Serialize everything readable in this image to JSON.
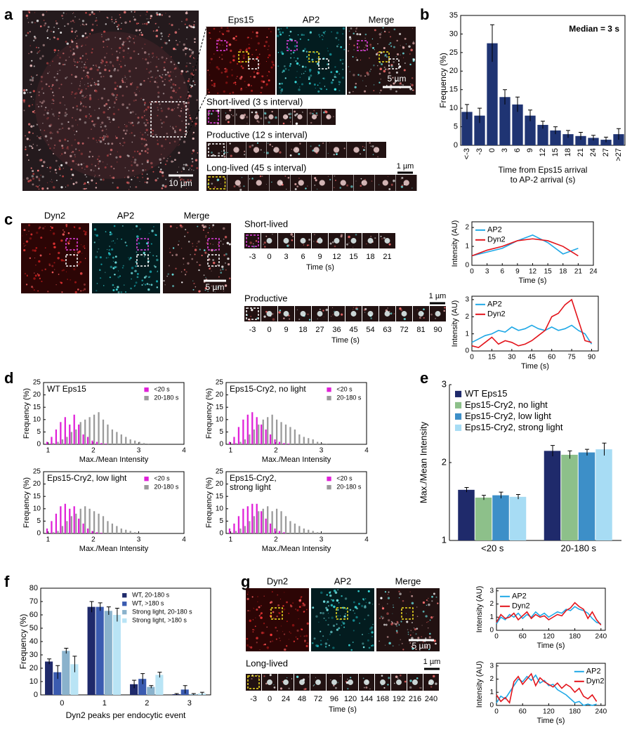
{
  "panel_labels": [
    "a",
    "b",
    "c",
    "d",
    "e",
    "f",
    "g"
  ],
  "micrographs": {
    "a": {
      "scale_bar": "10 µm",
      "channels": [
        "Eps15",
        "AP2",
        "Merge"
      ],
      "inset_scale_bar": "5 µm",
      "strips": [
        {
          "label": "Short-lived (3 s interval)"
        },
        {
          "label": "Productive (12 s interval)"
        },
        {
          "label": "Long-lived (45 s interval)"
        }
      ],
      "strip_scale_bar": "1 µm"
    },
    "c": {
      "channels": [
        "Dyn2",
        "AP2",
        "Merge"
      ],
      "scale_bar": "5 µm",
      "strips": [
        {
          "label": "Short-lived",
          "times": [
            -3,
            0,
            3,
            6,
            9,
            12,
            15,
            18,
            21
          ],
          "axis_label": "Time (s)"
        },
        {
          "label": "Productive",
          "times": [
            -3,
            0,
            9,
            18,
            27,
            36,
            45,
            54,
            63,
            72,
            81,
            90
          ],
          "axis_label": "Time (s)"
        }
      ],
      "strip_scale_bar": "1 µm"
    },
    "g": {
      "channels": [
        "Dyn2",
        "AP2",
        "Merge"
      ],
      "scale_bar": "5 µm",
      "strips": [
        {
          "label": "Long-lived",
          "times": [
            -3,
            0,
            24,
            48,
            72,
            96,
            120,
            144,
            168,
            192,
            216,
            240
          ],
          "axis_label": "Time (s)"
        }
      ],
      "strip_scale_bar": "1 µm"
    }
  },
  "chart_data": [
    {
      "type": "bar",
      "categories": [
        "<-3",
        "-3",
        "0",
        "3",
        "6",
        "9",
        "12",
        "15",
        "18",
        "21",
        "24",
        "27",
        ">27"
      ],
      "values": [
        9,
        8,
        27.5,
        13,
        11,
        8,
        5.5,
        4,
        3,
        2.5,
        2,
        1.5,
        3
      ],
      "errors": [
        2,
        2,
        5,
        2,
        2,
        1.5,
        1,
        1,
        1,
        1,
        0.7,
        0.7,
        1.5
      ],
      "color": "#1f3473",
      "ylim": [
        0,
        35
      ],
      "yticks": [
        0,
        5,
        10,
        15,
        20,
        25,
        30,
        35
      ],
      "ylabel": "Frequency (%)",
      "xlabel": [
        "Time from Eps15 arrival",
        "to AP-2 arrival (s)"
      ],
      "annotation": "Median = 3 s"
    },
    {
      "type": "line",
      "x": [
        0,
        3,
        6,
        9,
        12,
        15,
        18,
        21
      ],
      "series": [
        {
          "name": "AP2",
          "color": "#1fa8e6",
          "values": [
            0.5,
            0.7,
            0.9,
            1.3,
            1.6,
            1.2,
            0.6,
            0.9
          ]
        },
        {
          "name": "Dyn2",
          "color": "#e3141b",
          "values": [
            0.5,
            0.8,
            1.0,
            1.3,
            1.4,
            1.3,
            1.0,
            0.5
          ]
        }
      ],
      "xlim": [
        0,
        24
      ],
      "xticks": [
        0,
        3,
        6,
        9,
        12,
        15,
        18,
        21,
        24
      ],
      "ylim": [
        0,
        2.3
      ],
      "yticks": [
        0,
        1,
        2
      ],
      "xlabel": "Time (s)",
      "ylabel": "Intensity (AU)",
      "legend": "upper left"
    },
    {
      "type": "line",
      "x": [
        0,
        5,
        10,
        15,
        20,
        25,
        30,
        35,
        40,
        45,
        50,
        55,
        60,
        65,
        70,
        75,
        80,
        85,
        90
      ],
      "series": [
        {
          "name": "AP2",
          "color": "#1fa8e6",
          "values": [
            0.5,
            0.7,
            0.9,
            1.0,
            1.2,
            1.1,
            1.4,
            1.2,
            1.3,
            1.5,
            1.3,
            1.2,
            1.4,
            1.2,
            1.3,
            1.5,
            1.2,
            1.0,
            0.4
          ]
        },
        {
          "name": "Dyn2",
          "color": "#e3141b",
          "values": [
            0.3,
            0.2,
            0.5,
            0.8,
            0.4,
            0.6,
            0.5,
            0.3,
            0.4,
            0.6,
            0.9,
            1.2,
            2.0,
            2.2,
            2.7,
            3.0,
            1.8,
            0.6,
            0.5
          ]
        }
      ],
      "xlim": [
        0,
        95
      ],
      "xticks": [
        0,
        15,
        30,
        45,
        60,
        75,
        90
      ],
      "ylim": [
        0,
        3.2
      ],
      "yticks": [
        0,
        1,
        2,
        3
      ],
      "xlabel": "Time (s)",
      "ylabel": "Intensity (AU)",
      "legend": "upper left"
    },
    {
      "type": "bar",
      "title": "WT Eps15",
      "x": [
        1,
        1.1,
        1.2,
        1.3,
        1.4,
        1.5,
        1.6,
        1.7,
        1.8,
        1.9,
        2,
        2.1,
        2.2,
        2.3,
        2.4,
        2.5,
        2.6,
        2.7,
        2.8,
        2.9,
        3,
        3.1,
        3.2
      ],
      "series": [
        {
          "name": "<20 s",
          "color": "#e020d8",
          "values": [
            1,
            3,
            6,
            9,
            11,
            8,
            12,
            8,
            4,
            3,
            1.5,
            1,
            0.5,
            0.3,
            0,
            0,
            0,
            0,
            0,
            0,
            0,
            0,
            0
          ]
        },
        {
          "name": "20-180 s",
          "color": "#9a9a9a",
          "values": [
            0,
            0.5,
            1,
            2,
            3,
            5,
            6,
            9,
            10,
            11,
            12,
            13,
            10,
            8,
            6,
            5,
            4,
            3,
            2,
            1.5,
            1,
            0.5,
            0.3
          ]
        }
      ],
      "xlim": [
        0.9,
        4
      ],
      "xticks": [
        1,
        2,
        3,
        4
      ],
      "ylim": [
        0,
        25
      ],
      "yticks": [
        0,
        5,
        10,
        15,
        20,
        25
      ],
      "xlabel": "Max./Mean Intensity",
      "ylabel": "Frequency (%)",
      "legend": "upper right"
    },
    {
      "type": "bar",
      "title": "Eps15-Cry2, no light",
      "x": [
        1,
        1.1,
        1.2,
        1.3,
        1.4,
        1.5,
        1.6,
        1.7,
        1.8,
        1.9,
        2,
        2.1,
        2.2,
        2.3,
        2.4,
        2.5,
        2.6,
        2.7,
        2.8,
        2.9,
        3,
        3.1,
        3.2
      ],
      "series": [
        {
          "name": "<20 s",
          "color": "#e020d8",
          "values": [
            1,
            3,
            7,
            10,
            12,
            13,
            11,
            8,
            6,
            4,
            2,
            1,
            0.5,
            0.3,
            0,
            0,
            0,
            0,
            0,
            0,
            0,
            0,
            0
          ]
        },
        {
          "name": "20-180 s",
          "color": "#9a9a9a",
          "values": [
            0,
            0.5,
            1,
            2,
            4,
            6,
            8,
            10,
            11,
            12,
            10,
            9,
            8,
            7,
            6,
            4,
            3,
            2.5,
            2,
            1,
            0.5,
            0.3,
            0
          ]
        }
      ],
      "xlim": [
        0.9,
        4
      ],
      "xticks": [
        1,
        2,
        3,
        4
      ],
      "ylim": [
        0,
        25
      ],
      "yticks": [
        0,
        5,
        10,
        15,
        20,
        25
      ],
      "xlabel": "Max./Mean Intensity",
      "ylabel": "Frequency (%)",
      "legend": "upper right"
    },
    {
      "type": "bar",
      "title": "Eps15-Cry2, low light",
      "x": [
        1,
        1.1,
        1.2,
        1.3,
        1.4,
        1.5,
        1.6,
        1.7,
        1.8,
        1.9,
        2,
        2.1,
        2.2,
        2.3,
        2.4,
        2.5,
        2.6,
        2.7,
        2.8,
        2.9,
        3,
        3.1,
        3.2
      ],
      "series": [
        {
          "name": "<20 s",
          "color": "#e020d8",
          "values": [
            2,
            5,
            8,
            11,
            12,
            10,
            11,
            6,
            4,
            2,
            1,
            0.5,
            0.3,
            0,
            0,
            0,
            0,
            0,
            0,
            0,
            0,
            0,
            0
          ]
        },
        {
          "name": "20-180 s",
          "color": "#9a9a9a",
          "values": [
            0,
            0.5,
            1,
            3,
            5,
            7,
            8,
            10,
            11,
            10,
            9,
            8,
            7,
            5,
            4,
            3,
            2,
            1.5,
            1,
            0.5,
            0.3,
            0,
            0
          ]
        }
      ],
      "xlim": [
        0.9,
        4
      ],
      "xticks": [
        1,
        2,
        3,
        4
      ],
      "ylim": [
        0,
        25
      ],
      "yticks": [
        0,
        5,
        10,
        15,
        20,
        25
      ],
      "xlabel": "Max./Mean Intensity",
      "ylabel": "Frequency (%)",
      "legend": "upper right"
    },
    {
      "type": "bar",
      "title": [
        "Eps15-Cry2,",
        "strong light"
      ],
      "x": [
        1,
        1.1,
        1.2,
        1.3,
        1.4,
        1.5,
        1.6,
        1.7,
        1.8,
        1.9,
        2,
        2.1,
        2.2,
        2.3,
        2.4,
        2.5,
        2.6,
        2.7,
        2.8,
        2.9,
        3,
        3.1,
        3.2
      ],
      "series": [
        {
          "name": "<20 s",
          "color": "#e020d8",
          "values": [
            2,
            4,
            7,
            10,
            11,
            12,
            12,
            9,
            6,
            4,
            2,
            1,
            0.5,
            0,
            0,
            0,
            0,
            0,
            0,
            0,
            0,
            0,
            0
          ]
        },
        {
          "name": "20-180 s",
          "color": "#9a9a9a",
          "values": [
            0,
            1,
            2,
            3,
            5,
            7,
            9,
            10,
            11,
            9,
            10,
            9,
            7,
            5,
            4,
            3,
            2,
            1.5,
            1,
            0.5,
            0.3,
            0,
            0
          ]
        }
      ],
      "xlim": [
        0.9,
        4
      ],
      "xticks": [
        1,
        2,
        3,
        4
      ],
      "ylim": [
        0,
        25
      ],
      "yticks": [
        0,
        5,
        10,
        15,
        20,
        25
      ],
      "xlabel": "Max./Mean Intensity",
      "ylabel": "Frequency (%)",
      "legend": "upper right"
    },
    {
      "type": "bar",
      "categories": [
        "<20 s",
        "20-180 s"
      ],
      "series": [
        {
          "name": "WT Eps15",
          "color": "#1f2a6b",
          "values": [
            1.65,
            2.15
          ],
          "errors": [
            0.03,
            0.07
          ]
        },
        {
          "name": "Eps15-Cry2, no light",
          "color": "#8dc08a",
          "values": [
            1.55,
            2.1
          ],
          "errors": [
            0.03,
            0.05
          ]
        },
        {
          "name": "Eps15-Cry2, low light",
          "color": "#3d8fc8",
          "values": [
            1.58,
            2.13
          ],
          "errors": [
            0.04,
            0.04
          ]
        },
        {
          "name": "Eps15-Cry2, strong light",
          "color": "#a7dcf4",
          "values": [
            1.56,
            2.17
          ],
          "errors": [
            0.03,
            0.08
          ]
        }
      ],
      "ylim": [
        1,
        3
      ],
      "yticks": [
        1,
        2,
        3
      ],
      "ylabel": "Max./Mean Intensity",
      "legend": "upper left"
    },
    {
      "type": "bar",
      "categories": [
        "0",
        "1",
        "2",
        "3"
      ],
      "series": [
        {
          "name": "WT, 20-180 s",
          "color": "#1f2a6b",
          "values": [
            25,
            66,
            8,
            0.5
          ],
          "errors": [
            2,
            4,
            3,
            0.5
          ]
        },
        {
          "name": "WT, >180 s",
          "color": "#3a5bb0",
          "values": [
            17,
            66,
            12,
            4
          ],
          "errors": [
            5,
            3,
            4,
            3
          ]
        },
        {
          "name": "Strong light, 20-180 s",
          "color": "#8ab2cc",
          "values": [
            33,
            63,
            6,
            0.5
          ],
          "errors": [
            2,
            3,
            1,
            0.5
          ]
        },
        {
          "name": "Strong light, >180 s",
          "color": "#b9e4f5",
          "values": [
            23,
            60,
            15,
            1
          ],
          "errors": [
            6,
            5,
            2,
            1
          ]
        }
      ],
      "ylim": [
        0,
        80
      ],
      "yticks": [
        0,
        10,
        20,
        30,
        40,
        50,
        60,
        70,
        80
      ],
      "ylabel": "Frequency (%)",
      "xlabel": "Dyn2 peaks per endocytic event",
      "legend": "upper right"
    },
    {
      "type": "line",
      "x": [
        0,
        10,
        20,
        30,
        40,
        50,
        60,
        70,
        80,
        90,
        100,
        110,
        120,
        130,
        140,
        150,
        160,
        170,
        180,
        190,
        200,
        210,
        220,
        230,
        240
      ],
      "series": [
        {
          "name": "AP2",
          "color": "#1fa8e6",
          "values": [
            0.5,
            1.0,
            0.8,
            1.2,
            1.0,
            1.3,
            0.9,
            1.2,
            1.0,
            1.4,
            1.1,
            1.3,
            1.0,
            1.2,
            1.4,
            1.3,
            1.6,
            1.5,
            1.8,
            1.6,
            1.5,
            1.3,
            0.9,
            0.6,
            0.5
          ]
        },
        {
          "name": "Dyn2",
          "color": "#e3141b",
          "values": [
            0.6,
            1.2,
            0.9,
            1.0,
            1.3,
            0.8,
            1.1,
            1.4,
            0.9,
            1.2,
            1.0,
            1.1,
            0.8,
            1.0,
            1.2,
            1.1,
            1.5,
            1.7,
            2.1,
            1.8,
            1.6,
            0.9,
            1.4,
            0.8,
            0.4
          ]
        }
      ],
      "xlim": [
        0,
        250
      ],
      "xticks": [
        0,
        60,
        120,
        180,
        240
      ],
      "ylim": [
        0,
        3.2
      ],
      "yticks": [
        0,
        1,
        2,
        3
      ],
      "xlabel": "Time (s)",
      "ylabel": "Intensity (AU)",
      "legend": "upper left"
    },
    {
      "type": "line",
      "x": [
        0,
        10,
        20,
        30,
        40,
        50,
        60,
        70,
        80,
        90,
        100,
        110,
        120,
        130,
        140,
        150,
        160,
        170,
        180,
        190,
        200,
        210,
        220,
        230
      ],
      "series": [
        {
          "name": "AP2",
          "color": "#1fa8e6",
          "values": [
            0.2,
            0.7,
            0.5,
            1.0,
            1.5,
            2.0,
            1.8,
            2.2,
            1.9,
            2.3,
            1.7,
            1.9,
            1.5,
            1.6,
            1.2,
            1.0,
            0.8,
            0.5,
            0.2,
            0.3,
            0.0,
            0.1,
            0.0,
            0.1
          ]
        },
        {
          "name": "Dyn2",
          "color": "#e3141b",
          "values": [
            0.8,
            0.3,
            0.6,
            0.2,
            1.8,
            2.2,
            1.6,
            2.0,
            2.4,
            1.5,
            2.1,
            1.8,
            1.6,
            1.4,
            1.7,
            1.3,
            1.6,
            1.4,
            1.0,
            1.3,
            0.7,
            0.5,
            0.8,
            0.3
          ]
        }
      ],
      "xlim": [
        0,
        250
      ],
      "xticks": [
        0,
        60,
        120,
        180,
        240
      ],
      "ylim": [
        0,
        3.2
      ],
      "yticks": [
        0,
        1,
        2,
        3
      ],
      "xlabel": "Time (s)",
      "ylabel": "Intensity (AU)",
      "legend": "upper right"
    }
  ]
}
